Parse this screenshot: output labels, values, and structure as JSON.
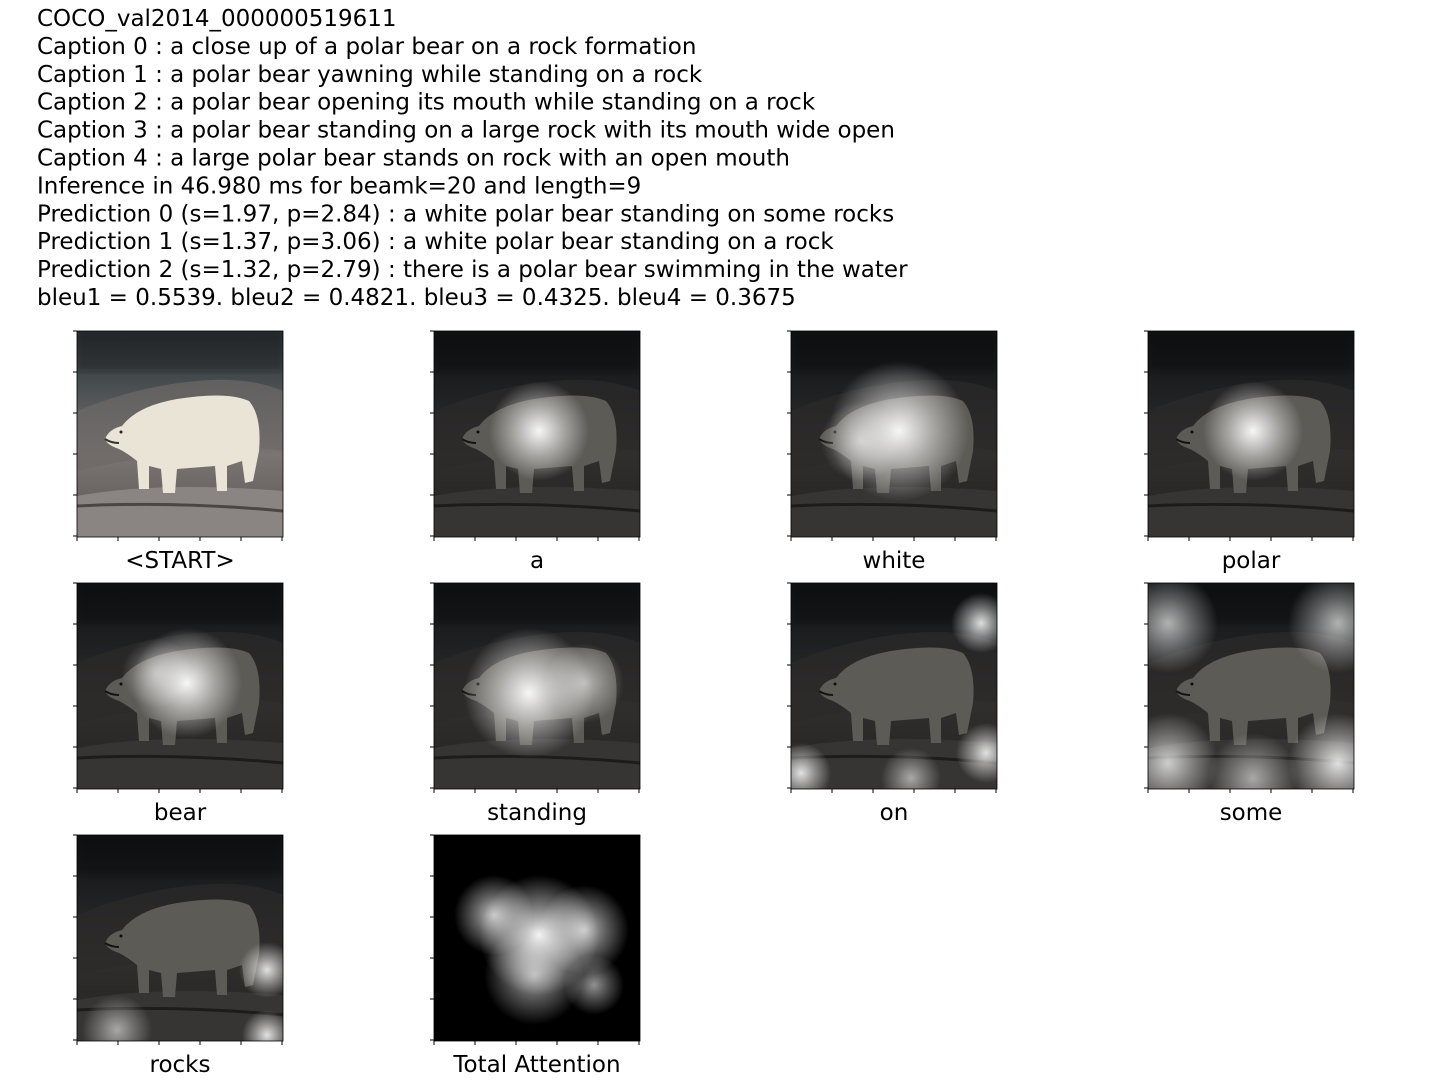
{
  "header": {
    "lines": [
      "COCO_val2014_000000519611",
      "Caption 0 : a close up of a polar bear on a rock formation",
      "Caption 1 : a polar bear yawning while standing on a rock",
      "Caption 2 : a polar bear opening its mouth while standing on a rock",
      "Caption 3 : a polar bear standing on a large rock with its mouth wide open",
      "Caption 4 : a large polar bear stands on rock with an open mouth",
      "Inference in 46.980 ms for beamk=20 and length=9",
      "Prediction 0 (s=1.97, p=2.84) : a white polar bear standing on some rocks",
      "Prediction 1 (s=1.37, p=3.06) : a white polar bear standing on a rock",
      "Prediction 2 (s=1.32, p=2.79) : there is a polar bear swimming in the water",
      "bleu1 = 0.5539. bleu2 = 0.4821. bleu3 = 0.4325. bleu4 = 0.3675"
    ]
  },
  "panels": [
    {
      "label": "<START>"
    },
    {
      "label": "a"
    },
    {
      "label": "white"
    },
    {
      "label": "polar"
    },
    {
      "label": "bear"
    },
    {
      "label": "standing"
    },
    {
      "label": "on"
    },
    {
      "label": "some"
    },
    {
      "label": "rocks"
    },
    {
      "label": "Total Attention"
    }
  ]
}
